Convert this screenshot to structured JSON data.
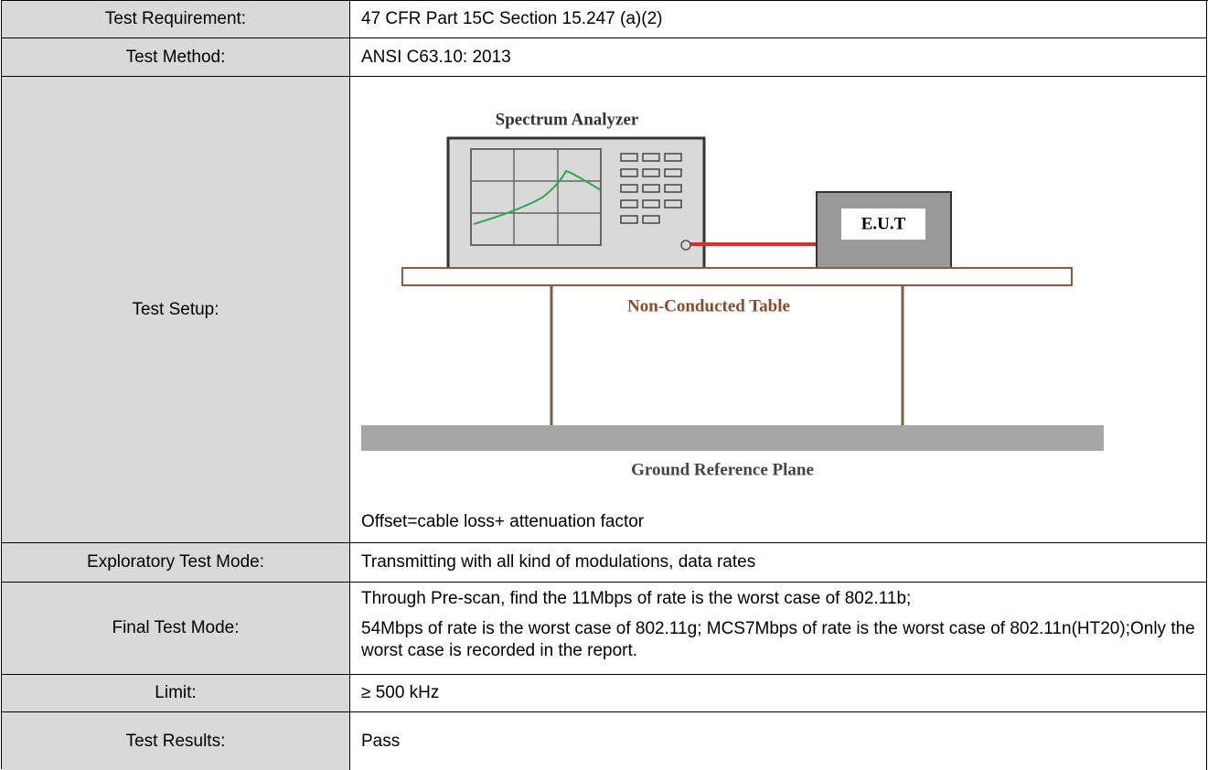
{
  "table": {
    "rows": [
      {
        "label": "Test Requirement:",
        "value": "47 CFR Part 15C Section 15.247 (a)(2)"
      },
      {
        "label": "Test Method:",
        "value": "ANSI C63.10: 2013"
      },
      {
        "label": "Test Setup:",
        "diagram": {
          "analyzer": "Spectrum Analyzer",
          "eut": "E.U.T",
          "table": "Non-Conducted Table",
          "ground": "Ground Reference Plane"
        },
        "note": "Offset=cable loss+ attenuation factor"
      },
      {
        "label": "Exploratory Test Mode:",
        "value": "Transmitting with all kind of modulations, data rates"
      },
      {
        "label": "Final Test Mode:",
        "value": [
          "Through Pre-scan, find the 11Mbps of rate is the worst case of 802.11b;",
          "54Mbps of rate is the worst case of 802.11g; MCS7Mbps of rate is the worst case of 802.11n(HT20);Only the worst case is recorded in the report."
        ]
      },
      {
        "label": "Limit:",
        "value": "≥ 500 kHz"
      },
      {
        "label": "Test Results:",
        "value": "Pass"
      }
    ]
  }
}
